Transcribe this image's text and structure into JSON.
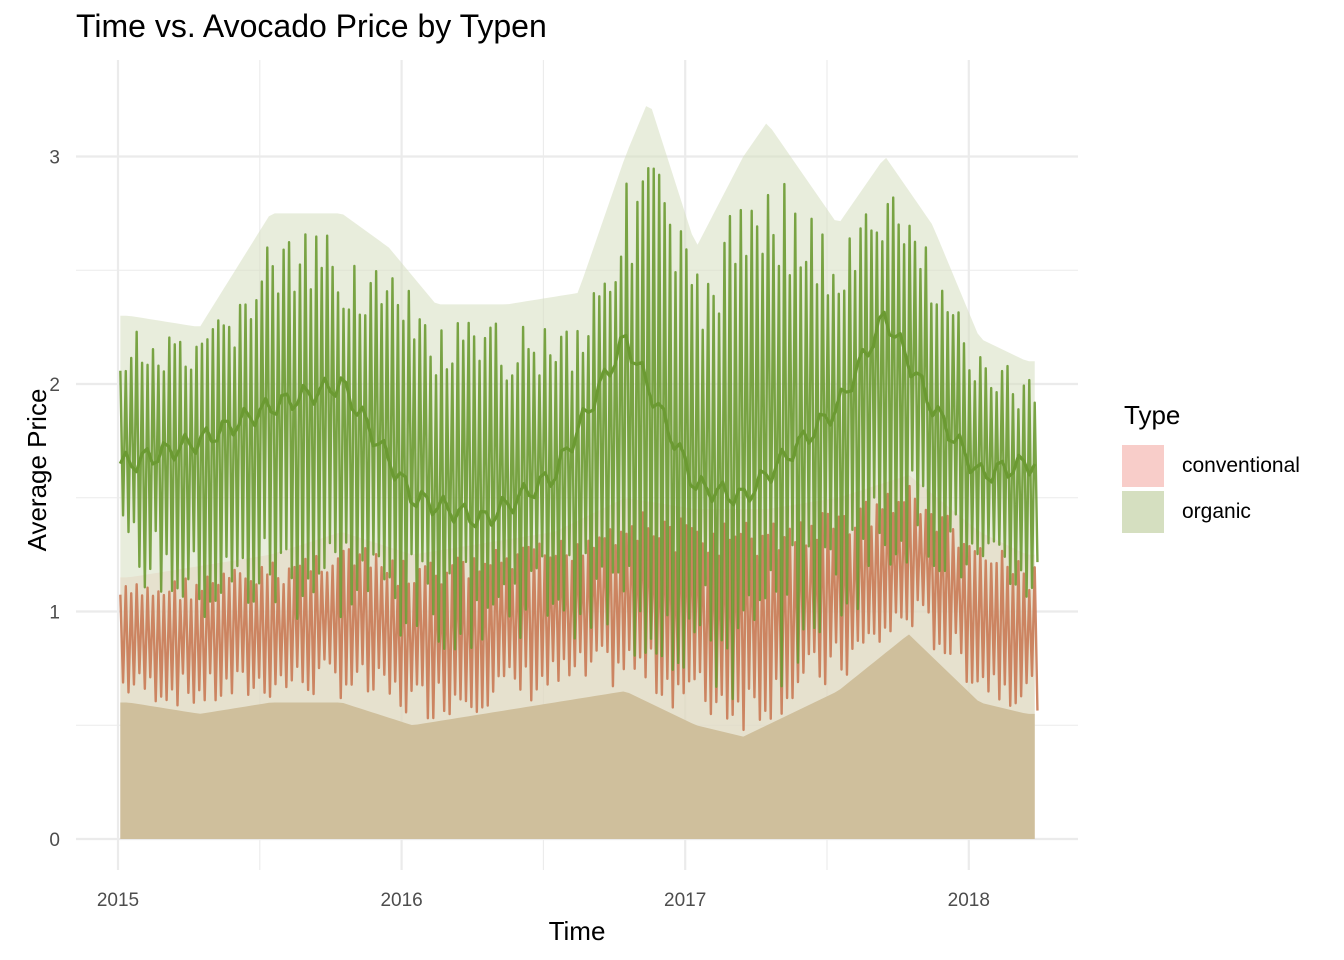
{
  "chart_data": {
    "type": "area",
    "title": "Time vs. Avocado Price by Typen",
    "xlabel": "Time",
    "ylabel": "Average Price",
    "x_ticks": [
      "2015",
      "2016",
      "2017",
      "2018"
    ],
    "y_ticks": [
      "0",
      "1",
      "2",
      "3"
    ],
    "xlim": [
      "2015-01-04",
      "2018-03-25"
    ],
    "ylim": [
      0,
      3.25
    ],
    "grid": true,
    "legend": {
      "title": "Type",
      "position": "right"
    },
    "series": [
      {
        "name": "conventional",
        "fill": "#f8cdc9",
        "line": "#c97a55",
        "x_range": [
          "2015-01-04",
          "2018-03-25"
        ],
        "upper_envelope": [
          [
            "2015-01",
            1.15
          ],
          [
            "2015-04",
            1.2
          ],
          [
            "2015-07",
            1.25
          ],
          [
            "2015-10",
            1.35
          ],
          [
            "2016-01",
            1.25
          ],
          [
            "2016-04",
            1.3
          ],
          [
            "2016-07",
            1.35
          ],
          [
            "2016-10",
            1.5
          ],
          [
            "2017-01",
            1.45
          ],
          [
            "2017-04",
            1.45
          ],
          [
            "2017-07",
            1.5
          ],
          [
            "2017-10",
            1.6
          ],
          [
            "2018-01",
            1.35
          ],
          [
            "2018-03",
            1.25
          ]
        ],
        "lower_envelope": [
          [
            "2015-01",
            0.6
          ],
          [
            "2015-04",
            0.55
          ],
          [
            "2015-07",
            0.6
          ],
          [
            "2015-10",
            0.6
          ],
          [
            "2016-01",
            0.5
          ],
          [
            "2016-04",
            0.55
          ],
          [
            "2016-07",
            0.6
          ],
          [
            "2016-10",
            0.65
          ],
          [
            "2017-01",
            0.5
          ],
          [
            "2017-03",
            0.45
          ],
          [
            "2017-07",
            0.65
          ],
          [
            "2017-10",
            0.9
          ],
          [
            "2018-01",
            0.6
          ],
          [
            "2018-03",
            0.55
          ]
        ]
      },
      {
        "name": "organic",
        "fill": "#d5dfc0",
        "line": "#6b9a32",
        "x_range": [
          "2015-01-04",
          "2018-03-25"
        ],
        "upper_envelope": [
          [
            "2015-01",
            2.3
          ],
          [
            "2015-04",
            2.25
          ],
          [
            "2015-07",
            2.75
          ],
          [
            "2015-10",
            2.75
          ],
          [
            "2015-12",
            2.6
          ],
          [
            "2016-02",
            2.35
          ],
          [
            "2016-05",
            2.35
          ],
          [
            "2016-08",
            2.4
          ],
          [
            "2016-10",
            3.0
          ],
          [
            "2016-11",
            3.25
          ],
          [
            "2017-01",
            2.6
          ],
          [
            "2017-03",
            3.0
          ],
          [
            "2017-04",
            3.15
          ],
          [
            "2017-07",
            2.7
          ],
          [
            "2017-09",
            3.0
          ],
          [
            "2017-11",
            2.7
          ],
          [
            "2018-01",
            2.2
          ],
          [
            "2018-03",
            2.1
          ]
        ],
        "lower_envelope": [
          [
            "2015-01",
            1.1
          ],
          [
            "2015-04",
            0.9
          ],
          [
            "2015-07",
            0.9
          ],
          [
            "2015-10",
            0.9
          ],
          [
            "2016-01",
            0.8
          ],
          [
            "2016-04",
            0.8
          ],
          [
            "2016-07",
            0.9
          ],
          [
            "2016-10",
            0.7
          ],
          [
            "2017-01",
            0.6
          ],
          [
            "2017-03",
            0.45
          ],
          [
            "2017-07",
            0.9
          ],
          [
            "2017-10",
            1.2
          ],
          [
            "2018-01",
            1.0
          ],
          [
            "2018-03",
            1.0
          ]
        ],
        "mean_line": [
          [
            "2015-01",
            1.65
          ],
          [
            "2015-04",
            1.75
          ],
          [
            "2015-07",
            1.9
          ],
          [
            "2015-10",
            2.0
          ],
          [
            "2016-01",
            1.5
          ],
          [
            "2016-04",
            1.4
          ],
          [
            "2016-07",
            1.6
          ],
          [
            "2016-10",
            2.2
          ],
          [
            "2017-01",
            1.55
          ],
          [
            "2017-03",
            1.5
          ],
          [
            "2017-07",
            1.9
          ],
          [
            "2017-09",
            2.3
          ],
          [
            "2017-11",
            1.9
          ],
          [
            "2018-01",
            1.6
          ],
          [
            "2018-03",
            1.65
          ]
        ]
      }
    ]
  }
}
